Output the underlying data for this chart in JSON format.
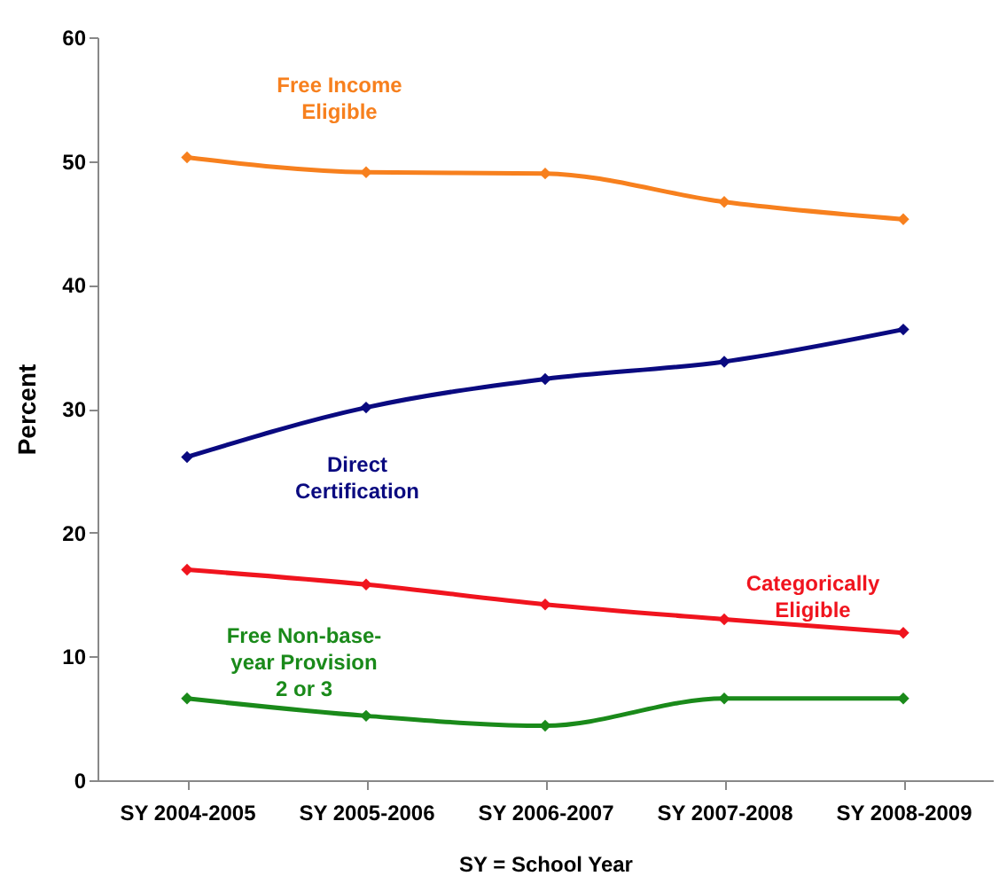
{
  "chart_data": {
    "type": "line",
    "xlabel": "SY = School Year",
    "ylabel": "Percent",
    "categories": [
      "SY 2004-2005",
      "SY 2005-2006",
      "SY 2006-2007",
      "SY 2007-2008",
      "SY 2008-2009"
    ],
    "ylim": [
      0,
      60
    ],
    "yticks": [
      0,
      10,
      20,
      30,
      40,
      50,
      60
    ],
    "grid": false,
    "legend": false,
    "marker": "diamond",
    "line_style": "solid",
    "series": [
      {
        "name": "Free Income Eligible",
        "color": "#f7801e",
        "values": [
          50.3,
          49.1,
          49.0,
          46.7,
          45.3
        ]
      },
      {
        "name": "Direct Certification",
        "color": "#0a0a80",
        "values": [
          26.1,
          30.1,
          32.4,
          33.8,
          36.4
        ]
      },
      {
        "name": "Categorically Eligible",
        "color": "#f0141e",
        "values": [
          17.0,
          15.8,
          14.2,
          13.0,
          11.9
        ]
      },
      {
        "name": "Free Non-base-year Provision 2 or 3",
        "color": "#1a8a1a",
        "values": [
          6.6,
          5.2,
          4.4,
          6.6,
          6.6
        ]
      }
    ]
  }
}
